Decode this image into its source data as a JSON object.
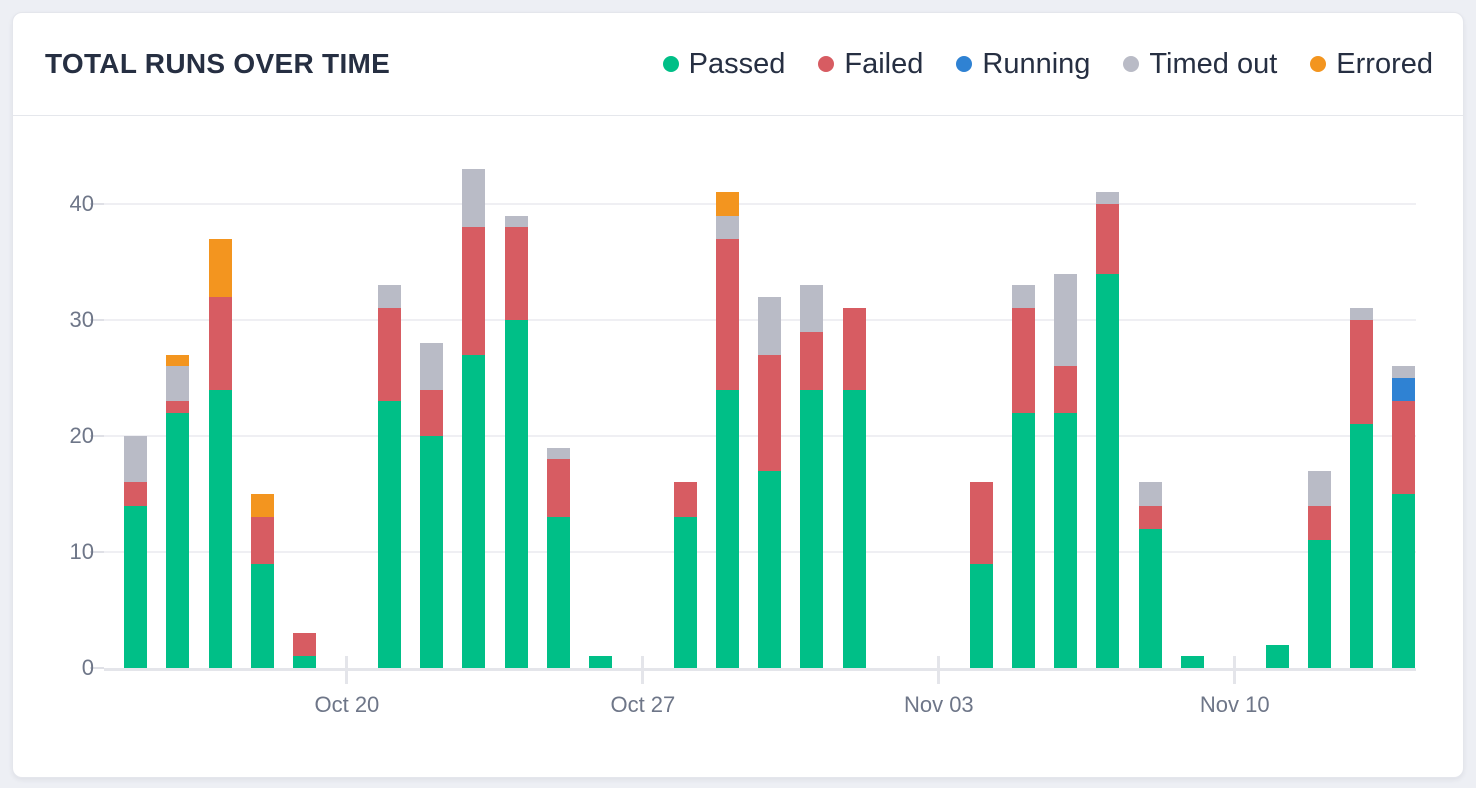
{
  "header": {
    "title": "TOTAL RUNS OVER TIME"
  },
  "legend": [
    {
      "key": "passed",
      "label": "Passed",
      "color": "#00bf87"
    },
    {
      "key": "failed",
      "label": "Failed",
      "color": "#d75c62"
    },
    {
      "key": "running",
      "label": "Running",
      "color": "#2f82d3"
    },
    {
      "key": "timed_out",
      "label": "Timed out",
      "color": "#b9bbc6"
    },
    {
      "key": "errored",
      "label": "Errored",
      "color": "#f3951f"
    }
  ],
  "chart_data": {
    "type": "bar",
    "stacked": true,
    "title": "TOTAL RUNS OVER TIME",
    "xlabel": "",
    "ylabel": "",
    "ylim": [
      0,
      46
    ],
    "y_ticks": [
      0,
      10,
      20,
      30,
      40
    ],
    "grid": true,
    "legend_position": "top-right",
    "total_slots": 31,
    "x_ticks": [
      {
        "label": "Oct 20",
        "slot": 5
      },
      {
        "label": "Oct 27",
        "slot": 12
      },
      {
        "label": "Nov 03",
        "slot": 19
      },
      {
        "label": "Nov 10",
        "slot": 26
      }
    ],
    "series_order": [
      "passed",
      "failed",
      "running",
      "timed_out",
      "errored"
    ],
    "series_colors": {
      "passed": "#00bf87",
      "failed": "#d75c62",
      "running": "#2f82d3",
      "timed_out": "#b9bbc6",
      "errored": "#f3951f"
    },
    "bars": [
      {
        "slot": 0,
        "passed": 14,
        "failed": 2,
        "running": 0,
        "timed_out": 4,
        "errored": 0,
        "total": 20
      },
      {
        "slot": 1,
        "passed": 22,
        "failed": 1,
        "running": 0,
        "timed_out": 3,
        "errored": 1,
        "total": 27
      },
      {
        "slot": 2,
        "passed": 24,
        "failed": 8,
        "running": 0,
        "timed_out": 0,
        "errored": 5,
        "total": 37
      },
      {
        "slot": 3,
        "passed": 9,
        "failed": 4,
        "running": 0,
        "timed_out": 0,
        "errored": 2,
        "total": 15
      },
      {
        "slot": 4,
        "passed": 1,
        "failed": 2,
        "running": 0,
        "timed_out": 0,
        "errored": 0,
        "total": 3
      },
      {
        "slot": 6,
        "passed": 23,
        "failed": 8,
        "running": 0,
        "timed_out": 2,
        "errored": 0,
        "total": 33
      },
      {
        "slot": 7,
        "passed": 20,
        "failed": 4,
        "running": 0,
        "timed_out": 4,
        "errored": 0,
        "total": 28
      },
      {
        "slot": 8,
        "passed": 27,
        "failed": 11,
        "running": 0,
        "timed_out": 5,
        "errored": 0,
        "total": 43
      },
      {
        "slot": 9,
        "passed": 30,
        "failed": 8,
        "running": 0,
        "timed_out": 1,
        "errored": 0,
        "total": 39
      },
      {
        "slot": 10,
        "passed": 13,
        "failed": 5,
        "running": 0,
        "timed_out": 1,
        "errored": 0,
        "total": 19
      },
      {
        "slot": 11,
        "passed": 1,
        "failed": 0,
        "running": 0,
        "timed_out": 0,
        "errored": 0,
        "total": 1
      },
      {
        "slot": 13,
        "passed": 13,
        "failed": 3,
        "running": 0,
        "timed_out": 0,
        "errored": 0,
        "total": 16
      },
      {
        "slot": 14,
        "passed": 24,
        "failed": 13,
        "running": 0,
        "timed_out": 2,
        "errored": 2,
        "total": 41
      },
      {
        "slot": 15,
        "passed": 17,
        "failed": 10,
        "running": 0,
        "timed_out": 5,
        "errored": 0,
        "total": 32
      },
      {
        "slot": 16,
        "passed": 24,
        "failed": 5,
        "running": 0,
        "timed_out": 4,
        "errored": 0,
        "total": 33
      },
      {
        "slot": 17,
        "passed": 24,
        "failed": 7,
        "running": 0,
        "timed_out": 0,
        "errored": 0,
        "total": 31
      },
      {
        "slot": 20,
        "passed": 9,
        "failed": 7,
        "running": 0,
        "timed_out": 0,
        "errored": 0,
        "total": 16
      },
      {
        "slot": 21,
        "passed": 22,
        "failed": 9,
        "running": 0,
        "timed_out": 2,
        "errored": 0,
        "total": 33
      },
      {
        "slot": 22,
        "passed": 22,
        "failed": 4,
        "running": 0,
        "timed_out": 8,
        "errored": 0,
        "total": 34
      },
      {
        "slot": 23,
        "passed": 34,
        "failed": 6,
        "running": 0,
        "timed_out": 1,
        "errored": 0,
        "total": 41
      },
      {
        "slot": 24,
        "passed": 12,
        "failed": 2,
        "running": 0,
        "timed_out": 2,
        "errored": 0,
        "total": 16
      },
      {
        "slot": 25,
        "passed": 1,
        "failed": 0,
        "running": 0,
        "timed_out": 0,
        "errored": 0,
        "total": 1
      },
      {
        "slot": 27,
        "passed": 2,
        "failed": 0,
        "running": 0,
        "timed_out": 0,
        "errored": 0,
        "total": 2
      },
      {
        "slot": 28,
        "passed": 11,
        "failed": 3,
        "running": 0,
        "timed_out": 3,
        "errored": 0,
        "total": 17
      },
      {
        "slot": 29,
        "passed": 21,
        "failed": 9,
        "running": 0,
        "timed_out": 1,
        "errored": 0,
        "total": 31
      },
      {
        "slot": 30,
        "passed": 15,
        "failed": 8,
        "running": 2,
        "timed_out": 1,
        "errored": 0,
        "total": 26
      }
    ]
  }
}
